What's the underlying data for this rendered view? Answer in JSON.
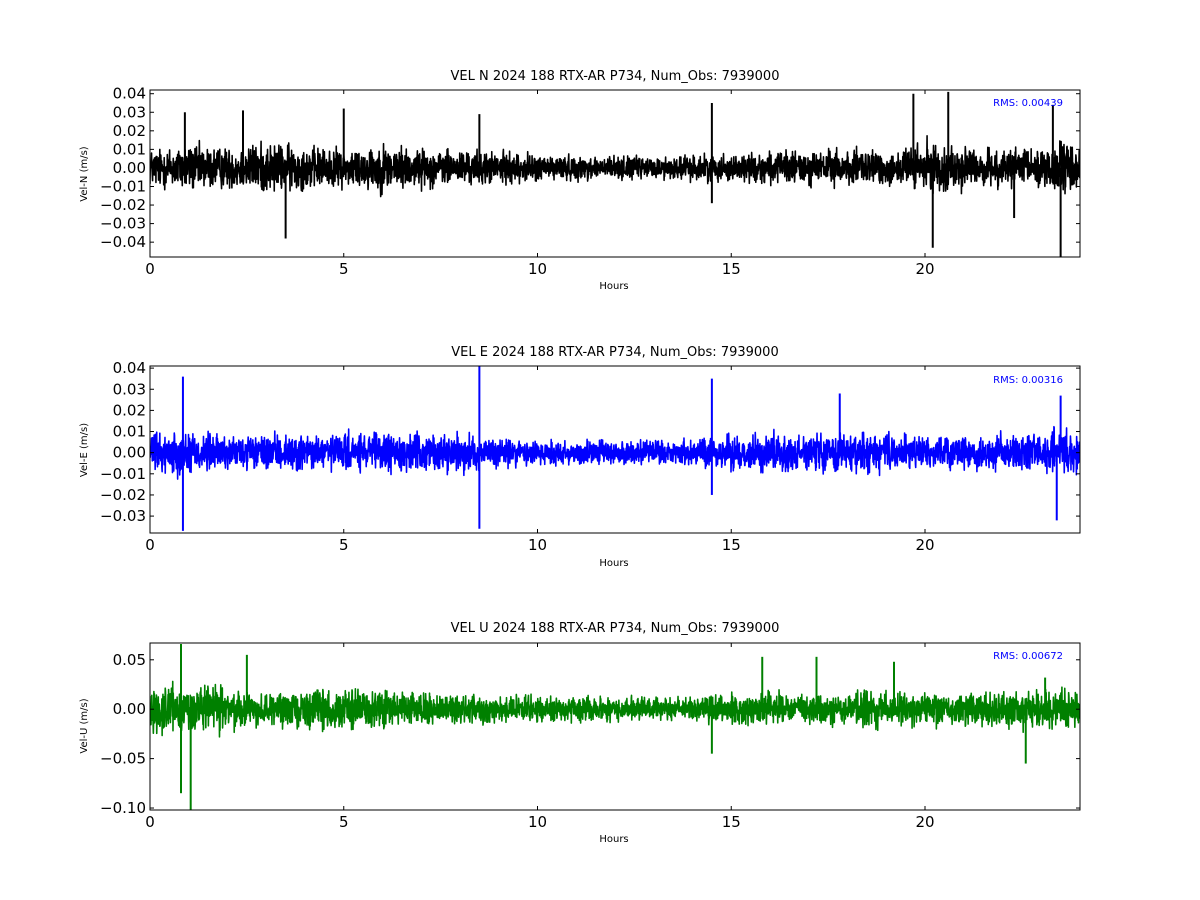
{
  "chart_data": [
    {
      "type": "line",
      "title": "VEL N 2024 188 RTX-AR  P734, Num_Obs: 7939000",
      "xlabel": "Hours",
      "ylabel": "Vel-N (m/s)",
      "xlim": [
        0,
        24
      ],
      "ylim": [
        -0.048,
        0.042
      ],
      "xticks": [
        "0",
        "5",
        "10",
        "15",
        "20"
      ],
      "xtick_values": [
        0,
        5,
        10,
        15,
        20
      ],
      "yticks": [
        "−0.04",
        "−0.03",
        "−0.02",
        "−0.01",
        "0.00",
        "0.01",
        "0.02",
        "0.03",
        "0.04"
      ],
      "ytick_values": [
        -0.04,
        -0.03,
        -0.02,
        -0.01,
        0.0,
        0.01,
        0.02,
        0.03,
        0.04
      ],
      "grid": false,
      "color": "#000000",
      "annotation": "RMS:  0.00439",
      "annotation_color": "#0000ff",
      "envelope": {
        "hours": [
          0,
          1,
          2,
          3,
          4,
          5,
          6,
          7,
          8,
          9,
          10,
          11,
          12,
          13,
          14,
          15,
          16,
          17,
          18,
          19,
          20,
          21,
          22,
          23,
          24
        ],
        "amplitude": [
          0.014,
          0.018,
          0.015,
          0.019,
          0.016,
          0.014,
          0.018,
          0.014,
          0.013,
          0.012,
          0.01,
          0.009,
          0.009,
          0.008,
          0.01,
          0.01,
          0.012,
          0.013,
          0.014,
          0.013,
          0.018,
          0.016,
          0.012,
          0.018,
          0.019
        ]
      },
      "spikes": [
        {
          "hour": 0.9,
          "value": 0.03
        },
        {
          "hour": 2.4,
          "value": 0.031
        },
        {
          "hour": 3.5,
          "value": -0.038
        },
        {
          "hour": 5.0,
          "value": 0.032
        },
        {
          "hour": 8.5,
          "value": 0.029
        },
        {
          "hour": 14.5,
          "value": 0.035
        },
        {
          "hour": 14.5,
          "value": -0.019
        },
        {
          "hour": 19.7,
          "value": 0.04
        },
        {
          "hour": 20.2,
          "value": -0.043
        },
        {
          "hour": 20.6,
          "value": 0.041
        },
        {
          "hour": 22.3,
          "value": -0.027
        },
        {
          "hour": 23.5,
          "value": -0.048
        },
        {
          "hour": 23.3,
          "value": 0.034
        }
      ]
    },
    {
      "type": "line",
      "title": "VEL E 2024 188 RTX-AR  P734, Num_Obs: 7939000",
      "xlabel": "Hours",
      "ylabel": "Vel-E (m/s)",
      "xlim": [
        0,
        24
      ],
      "ylim": [
        -0.038,
        0.041
      ],
      "xticks": [
        "0",
        "5",
        "10",
        "15",
        "20"
      ],
      "xtick_values": [
        0,
        5,
        10,
        15,
        20
      ],
      "yticks": [
        "−0.03",
        "−0.02",
        "−0.01",
        "0.00",
        "0.01",
        "0.02",
        "0.03",
        "0.04"
      ],
      "ytick_values": [
        -0.03,
        -0.02,
        -0.01,
        0.0,
        0.01,
        0.02,
        0.03,
        0.04
      ],
      "grid": false,
      "color": "#0000ff",
      "annotation": "RMS:  0.00316",
      "annotation_color": "#0000ff",
      "envelope": {
        "hours": [
          0,
          1,
          2,
          3,
          4,
          5,
          6,
          7,
          8,
          9,
          10,
          11,
          12,
          13,
          14,
          15,
          16,
          17,
          18,
          19,
          20,
          21,
          22,
          23,
          24
        ],
        "amplitude": [
          0.012,
          0.015,
          0.011,
          0.011,
          0.012,
          0.012,
          0.013,
          0.012,
          0.012,
          0.01,
          0.009,
          0.009,
          0.008,
          0.008,
          0.009,
          0.011,
          0.012,
          0.012,
          0.013,
          0.012,
          0.01,
          0.011,
          0.011,
          0.013,
          0.014
        ]
      },
      "spikes": [
        {
          "hour": 0.85,
          "value": 0.036
        },
        {
          "hour": 0.85,
          "value": -0.037
        },
        {
          "hour": 8.5,
          "value": 0.041
        },
        {
          "hour": 8.5,
          "value": -0.036
        },
        {
          "hour": 14.5,
          "value": 0.035
        },
        {
          "hour": 14.5,
          "value": -0.02
        },
        {
          "hour": 17.8,
          "value": 0.028
        },
        {
          "hour": 23.4,
          "value": -0.032
        },
        {
          "hour": 23.5,
          "value": 0.027
        }
      ]
    },
    {
      "type": "line",
      "title": "VEL U 2024 188 RTX-AR  P734, Num_Obs: 7939000",
      "xlabel": "Hours",
      "ylabel": "Vel-U (m/s)",
      "xlim": [
        0,
        24
      ],
      "ylim": [
        -0.102,
        0.067
      ],
      "xticks": [
        "0",
        "5",
        "10",
        "15",
        "20"
      ],
      "xtick_values": [
        0,
        5,
        10,
        15,
        20
      ],
      "yticks": [
        "−0.10",
        "−0.05",
        "0.00",
        "0.05"
      ],
      "ytick_values": [
        -0.1,
        -0.05,
        0.0,
        0.05
      ],
      "grid": false,
      "color": "#008000",
      "annotation": "RMS:  0.00672",
      "annotation_color": "#0000ff",
      "envelope": {
        "hours": [
          0,
          1,
          2,
          3,
          4,
          5,
          6,
          7,
          8,
          9,
          10,
          11,
          12,
          13,
          14,
          15,
          16,
          17,
          18,
          19,
          20,
          21,
          22,
          23,
          24
        ],
        "amplitude": [
          0.03,
          0.035,
          0.03,
          0.02,
          0.025,
          0.03,
          0.025,
          0.02,
          0.02,
          0.018,
          0.018,
          0.017,
          0.016,
          0.016,
          0.018,
          0.02,
          0.022,
          0.022,
          0.024,
          0.026,
          0.022,
          0.022,
          0.024,
          0.028,
          0.028
        ]
      },
      "spikes": [
        {
          "hour": 0.8,
          "value": 0.066
        },
        {
          "hour": 0.8,
          "value": -0.085
        },
        {
          "hour": 1.05,
          "value": -0.102
        },
        {
          "hour": 2.5,
          "value": 0.055
        },
        {
          "hour": 14.5,
          "value": -0.045
        },
        {
          "hour": 15.8,
          "value": 0.053
        },
        {
          "hour": 17.2,
          "value": 0.053
        },
        {
          "hour": 19.2,
          "value": 0.048
        },
        {
          "hour": 22.6,
          "value": -0.055
        },
        {
          "hour": 23.1,
          "value": 0.032
        }
      ]
    }
  ]
}
